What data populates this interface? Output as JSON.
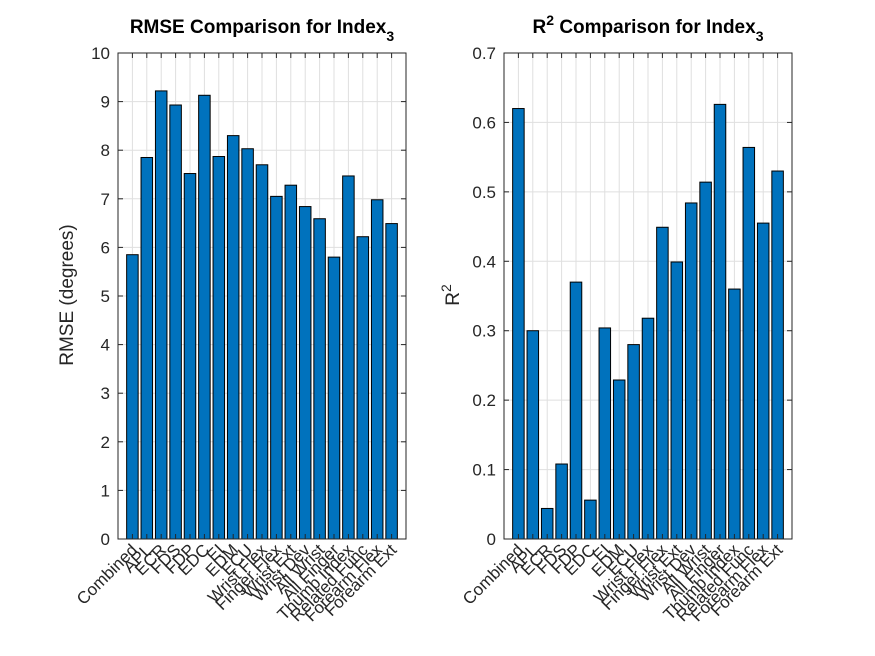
{
  "chart_data": [
    {
      "type": "bar",
      "title": "RMSE Comparison for Index",
      "title_subscript": "3",
      "xlabel": "",
      "ylabel": "RMSE (degrees)",
      "ylim": [
        0,
        10
      ],
      "yticks": [
        0,
        1,
        2,
        3,
        4,
        5,
        6,
        7,
        8,
        9,
        10
      ],
      "grid": true,
      "bar_color": "#0072bd",
      "categories": [
        "Combined",
        "APL",
        "ECR",
        "FDS",
        "FDP",
        "EDC",
        "EI",
        "EDM",
        "ECU",
        "Wrist Flex",
        "Finger Flex",
        "Wrist Ext",
        "Wrist Dev",
        "All Wrist",
        "All Finger",
        "Thumb Index",
        "Related Func",
        "Forearm Flex",
        "Forearm Ext"
      ],
      "values": [
        5.85,
        7.85,
        9.22,
        8.93,
        7.52,
        9.13,
        7.87,
        8.3,
        8.03,
        7.7,
        7.05,
        7.28,
        6.84,
        6.59,
        5.8,
        7.47,
        6.22,
        6.98,
        6.49
      ]
    },
    {
      "type": "bar",
      "title": "R",
      "title_superscript": "2",
      "title_rest": " Comparison for Index",
      "title_subscript": "3",
      "xlabel": "",
      "ylabel": "R",
      "ylabel_superscript": "2",
      "ylim": [
        0,
        0.7
      ],
      "yticks": [
        0,
        0.1,
        0.2,
        0.3,
        0.4,
        0.5,
        0.6,
        0.7
      ],
      "grid": true,
      "bar_color": "#0072bd",
      "categories": [
        "Combined",
        "APL",
        "ECR",
        "FDS",
        "FDP",
        "EDC",
        "EI",
        "EDM",
        "ECU",
        "Wrist Flex",
        "Finger Flex",
        "Wrist Ext",
        "Wrist Dev",
        "All Wrist",
        "All Finger",
        "Thumb Index",
        "Related Func",
        "Forearm Flex",
        "Forearm Ext"
      ],
      "values": [
        0.62,
        0.3,
        0.044,
        0.108,
        0.37,
        0.056,
        0.304,
        0.229,
        0.28,
        0.318,
        0.449,
        0.399,
        0.484,
        0.514,
        0.626,
        0.36,
        0.564,
        0.455,
        0.53
      ]
    }
  ]
}
